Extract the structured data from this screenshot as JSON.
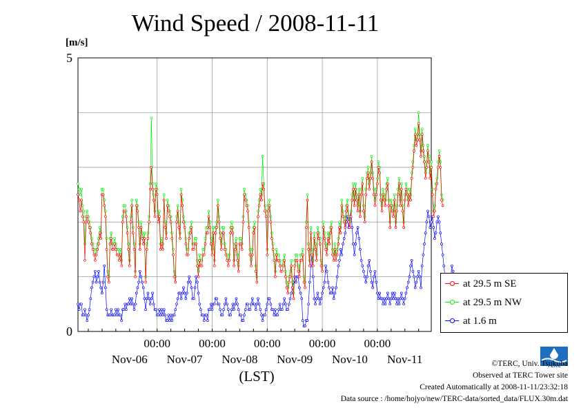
{
  "title": "Wind Speed / 2008-11-11",
  "unit": "[m/s]",
  "xlabel": "(LST)",
  "legend": [
    "at 29.5 m SE",
    "at 29.5 m NW",
    "at 1.6 m"
  ],
  "credits": {
    "copyright": "©TERC, Univ. Tsukuba",
    "observed": "Observed at TERC Tower site",
    "created": "Created Automatically at 2008-11-11/23:32:18",
    "source": "Data source : /home/hojyo/new/TERC-data/sorted_data/FLUX.30m.dat"
  },
  "logo_text": "TERC",
  "chart_data": {
    "type": "line",
    "title": "Wind Speed / 2008-11-11",
    "ylabel": "[m/s]",
    "xlabel": "(LST)",
    "ylim": [
      0,
      5
    ],
    "yticks": [
      "0",
      "5"
    ],
    "grid": true,
    "legend_position": "right-bottom",
    "time_ticks": [
      "00:00",
      "00:00",
      "00:00",
      "00:00",
      "00:00"
    ],
    "day_labels": [
      "Nov-06",
      "Nov-07",
      "Nov-08",
      "Nov-09",
      "Nov-10",
      "Nov-11"
    ],
    "x_start": "2008-11-05T13:30",
    "x_step_hours": 0.5,
    "colors": {
      "se": "#ff0000",
      "nw": "#00ee00",
      "low": "#0000ff"
    },
    "series": [
      {
        "name": "at 29.5 m SE",
        "color": "#ff0000",
        "values": [
          2.5,
          2.4,
          2.2,
          2.4,
          2.1,
          2.0,
          1.3,
          2.0,
          2.1,
          2.0,
          1.9,
          1.8,
          1.6,
          1.5,
          1.4,
          1.3,
          1.4,
          1.5,
          1.6,
          1.8,
          1.7,
          2.5,
          2.5,
          2.3,
          2.1,
          1.5,
          1.0,
          0.9,
          1.6,
          1.7,
          1.5,
          1.5,
          1.6,
          1.5,
          1.4,
          1.4,
          1.3,
          1.4,
          1.2,
          2.0,
          2.2,
          2.2,
          2.1,
          1.8,
          1.5,
          1.2,
          2.0,
          2.3,
          1.8,
          1.5,
          1.0,
          2.3,
          2.2,
          1.9,
          1.5,
          1.9,
          1.7,
          1.6,
          1.7,
          0.9,
          1.5,
          1.7,
          2.0,
          2.6,
          3.0,
          2.6,
          2.4,
          2.1,
          2.6,
          2.5,
          2.0,
          2.1,
          1.5,
          1.6,
          1.5,
          2.4,
          1.9,
          1.7,
          2.3,
          2.2,
          2.1,
          2.0,
          1.7,
          1.4,
          1.0,
          0.9,
          2.0,
          2.2,
          1.9,
          1.7,
          2.5,
          2.3,
          2.0,
          1.9,
          1.6,
          1.4,
          1.4,
          1.7,
          1.8,
          1.9,
          1.5,
          1.5,
          1.6,
          1.6,
          1.2,
          1.0,
          1.3,
          1.2,
          1.2,
          1.4,
          1.4,
          1.6,
          1.8,
          1.8,
          2.1,
          1.9,
          1.6,
          1.4,
          1.8,
          1.2,
          1.8,
          1.9,
          2.3,
          2.0,
          1.7,
          1.5,
          1.8,
          1.8,
          1.5,
          1.4,
          1.3,
          1.2,
          1.3,
          1.8,
          1.9,
          1.8,
          1.2,
          1.5,
          1.6,
          1.3,
          1.1,
          1.6,
          1.6,
          1.5,
          2.0,
          2.5,
          2.4,
          2.3,
          2.2,
          1.9,
          1.4,
          1.2,
          1.4,
          1.8,
          1.9,
          1.1,
          0.9,
          2.1,
          2.3,
          2.5,
          2.4,
          2.7,
          2.6,
          2.2,
          2.1,
          1.4,
          2.2,
          2.3,
          2.0,
          1.7,
          1.5,
          1.3,
          1.0,
          1.4,
          1.3,
          1.3,
          1.2,
          1.1,
          1.1,
          1.2,
          1.3,
          1.0,
          0.8,
          0.7,
          0.9,
          1.0,
          1.2,
          0.8,
          0.6,
          1.2,
          1.3,
          1.3,
          1.1,
          1.0,
          1.3,
          1.3,
          1.4,
          0.9,
          0.8,
          1.9,
          2.4,
          1.5,
          1.2,
          1.8,
          1.4,
          1.2,
          1.7,
          1.5,
          1.3,
          1.8,
          1.7,
          1.6,
          1.2,
          1.1,
          1.9,
          1.7,
          1.5,
          1.4,
          1.7,
          1.6,
          1.8,
          1.9,
          1.4,
          1.3,
          1.5,
          1.3,
          1.4,
          1.6,
          1.9,
          1.8,
          2.3,
          2.1,
          2.0,
          1.9,
          2.2,
          2.3,
          2.0,
          1.9,
          2.1,
          2.4,
          2.6,
          2.3,
          2.6,
          2.4,
          2.2,
          2.5,
          2.1,
          2.5,
          2.7,
          2.2,
          2.0,
          2.5,
          2.8,
          2.9,
          2.6,
          2.8,
          3.1,
          2.8,
          2.5,
          2.3,
          2.5,
          2.7,
          3.0,
          2.9,
          2.4,
          2.2,
          2.5,
          2.4,
          2.3,
          2.6,
          2.7,
          2.3,
          1.9,
          2.3,
          2.2,
          2.1,
          2.4,
          1.9,
          2.2,
          2.5,
          2.7,
          2.3,
          2.6,
          2.2,
          1.9,
          2.4,
          2.6,
          2.5,
          2.3,
          2.5,
          2.4,
          2.8,
          3.0,
          3.3,
          3.6,
          3.4,
          3.5,
          3.8,
          3.5,
          3.2,
          3.6,
          3.3,
          3.1,
          2.8,
          3.0,
          3.3,
          3.1,
          2.8,
          3.0,
          2.5,
          2.1,
          2.2,
          2.6,
          2.7,
          3.0,
          3.2,
          3.0,
          2.4,
          2.3
        ]
      },
      {
        "name": "at 29.5 m NW",
        "color": "#00ee00",
        "values": [
          2.7,
          2.6,
          2.5,
          2.6,
          2.3,
          2.2,
          1.6,
          2.1,
          2.2,
          2.1,
          2.0,
          1.9,
          1.7,
          1.6,
          1.5,
          1.4,
          1.5,
          1.6,
          1.7,
          1.9,
          1.8,
          2.6,
          2.6,
          2.4,
          2.2,
          1.7,
          1.1,
          1.0,
          1.7,
          1.8,
          1.6,
          1.6,
          1.7,
          1.6,
          1.5,
          1.5,
          1.4,
          1.5,
          1.3,
          2.1,
          2.3,
          2.3,
          2.2,
          1.9,
          1.6,
          1.3,
          2.1,
          2.4,
          1.9,
          1.6,
          1.1,
          2.4,
          2.3,
          2.0,
          1.6,
          2.0,
          1.8,
          1.7,
          1.8,
          1.0,
          1.6,
          1.8,
          2.1,
          2.7,
          3.9,
          2.7,
          2.5,
          2.2,
          2.7,
          2.6,
          2.1,
          2.2,
          1.6,
          1.7,
          1.6,
          2.5,
          2.0,
          1.8,
          2.4,
          2.3,
          2.2,
          2.1,
          1.8,
          1.5,
          1.1,
          1.0,
          2.1,
          2.3,
          2.0,
          1.8,
          2.6,
          2.4,
          2.1,
          2.0,
          1.7,
          1.5,
          1.5,
          1.8,
          1.9,
          2.0,
          1.6,
          1.6,
          1.7,
          1.7,
          1.3,
          1.1,
          1.4,
          1.3,
          1.3,
          1.5,
          1.5,
          1.7,
          1.9,
          1.9,
          2.2,
          2.0,
          1.7,
          1.5,
          1.9,
          1.3,
          1.9,
          2.0,
          2.4,
          2.1,
          1.8,
          1.6,
          1.9,
          1.9,
          1.6,
          1.5,
          1.4,
          1.3,
          1.4,
          1.9,
          2.0,
          1.9,
          1.3,
          1.6,
          1.7,
          1.4,
          1.2,
          1.7,
          1.7,
          1.6,
          2.1,
          2.6,
          2.5,
          2.4,
          2.3,
          2.0,
          1.5,
          1.3,
          1.5,
          1.9,
          2.0,
          1.2,
          1.0,
          2.2,
          2.4,
          2.6,
          2.5,
          3.2,
          2.7,
          2.3,
          2.2,
          1.5,
          2.3,
          2.4,
          2.1,
          1.8,
          1.6,
          1.4,
          1.1,
          1.5,
          1.4,
          1.4,
          1.3,
          1.2,
          1.2,
          1.3,
          1.4,
          1.1,
          0.9,
          0.8,
          1.0,
          1.1,
          1.3,
          0.9,
          0.7,
          1.3,
          1.4,
          1.4,
          1.2,
          1.1,
          1.4,
          1.4,
          1.5,
          1.0,
          0.9,
          2.0,
          2.5,
          1.6,
          1.3,
          1.9,
          1.5,
          1.3,
          1.8,
          1.6,
          1.4,
          1.9,
          1.8,
          1.7,
          1.3,
          1.2,
          2.0,
          1.8,
          1.6,
          1.5,
          1.8,
          1.7,
          1.9,
          2.0,
          1.5,
          1.4,
          1.6,
          1.4,
          1.5,
          1.7,
          2.0,
          1.9,
          2.4,
          2.2,
          2.1,
          2.0,
          2.3,
          2.4,
          2.1,
          2.0,
          2.2,
          2.5,
          2.7,
          2.4,
          2.7,
          2.5,
          2.3,
          2.6,
          2.2,
          2.6,
          2.8,
          2.3,
          2.1,
          2.6,
          2.9,
          3.0,
          2.7,
          2.9,
          3.2,
          2.9,
          2.6,
          2.4,
          2.6,
          2.8,
          3.1,
          3.0,
          2.5,
          2.3,
          2.6,
          2.5,
          2.4,
          2.7,
          2.8,
          2.4,
          2.0,
          2.4,
          2.3,
          2.2,
          2.5,
          2.0,
          2.3,
          2.6,
          2.8,
          2.4,
          2.7,
          2.3,
          2.0,
          2.5,
          2.7,
          2.6,
          2.4,
          2.6,
          2.5,
          2.9,
          3.1,
          3.4,
          3.7,
          3.5,
          3.6,
          4.0,
          3.6,
          3.3,
          3.7,
          3.4,
          3.2,
          2.9,
          3.1,
          3.4,
          3.2,
          2.9,
          3.1,
          2.6,
          2.2,
          2.3,
          2.7,
          2.8,
          3.1,
          3.3,
          3.1,
          2.5,
          2.4
        ]
      },
      {
        "name": "at 1.6 m",
        "color": "#0000ff",
        "values": [
          0.5,
          0.4,
          0.5,
          0.5,
          0.3,
          0.3,
          0.4,
          0.3,
          0.2,
          0.3,
          0.4,
          0.6,
          0.8,
          0.9,
          1.0,
          1.1,
          0.9,
          1.0,
          1.1,
          0.9,
          0.8,
          0.7,
          0.9,
          1.2,
          0.8,
          0.4,
          0.3,
          0.3,
          0.3,
          0.4,
          0.3,
          0.3,
          0.3,
          0.4,
          0.3,
          0.4,
          0.3,
          0.3,
          0.2,
          0.4,
          0.4,
          0.5,
          0.4,
          0.5,
          0.5,
          0.6,
          0.5,
          0.6,
          0.5,
          0.4,
          0.5,
          0.7,
          0.8,
          0.9,
          1.1,
          1.0,
          0.9,
          0.8,
          0.6,
          0.4,
          0.6,
          0.7,
          0.6,
          0.5,
          0.6,
          0.7,
          0.5,
          0.4,
          0.4,
          0.3,
          0.3,
          0.4,
          0.3,
          0.4,
          0.3,
          0.4,
          0.3,
          0.2,
          0.2,
          0.3,
          0.2,
          0.3,
          0.2,
          0.3,
          0.3,
          0.4,
          0.5,
          0.6,
          0.7,
          0.7,
          0.6,
          0.7,
          0.8,
          0.7,
          0.6,
          0.7,
          0.9,
          1.0,
          0.9,
          0.8,
          0.6,
          0.6,
          0.8,
          1.0,
          0.9,
          0.7,
          0.5,
          0.4,
          0.3,
          0.3,
          0.2,
          0.3,
          0.3,
          0.2,
          0.4,
          0.4,
          0.5,
          0.4,
          0.5,
          0.5,
          0.6,
          0.6,
          0.5,
          0.5,
          0.4,
          0.3,
          0.3,
          0.4,
          0.5,
          0.6,
          0.5,
          0.4,
          0.3,
          0.3,
          0.4,
          0.5,
          0.4,
          0.5,
          0.6,
          0.5,
          0.4,
          0.3,
          0.3,
          0.2,
          0.2,
          0.3,
          0.4,
          0.5,
          0.5,
          0.4,
          0.4,
          0.5,
          0.6,
          0.5,
          0.5,
          0.4,
          0.5,
          0.6,
          0.5,
          0.4,
          0.3,
          0.2,
          0.3,
          0.3,
          0.4,
          0.5,
          0.6,
          0.6,
          0.5,
          0.4,
          0.4,
          0.3,
          0.4,
          0.3,
          0.3,
          0.4,
          0.5,
          0.4,
          0.4,
          0.5,
          0.6,
          0.5,
          0.4,
          0.4,
          0.5,
          0.6,
          0.7,
          0.8,
          0.9,
          1.0,
          0.9,
          1.0,
          1.0,
          0.8,
          0.7,
          0.6,
          0.2,
          0.1,
          0.1,
          0.2,
          0.2,
          0.5,
          0.9,
          1.2,
          1.4,
          1.0,
          0.6,
          0.5,
          0.6,
          0.7,
          0.6,
          0.5,
          0.6,
          0.7,
          0.8,
          0.9,
          1.2,
          1.1,
          0.9,
          0.8,
          0.7,
          0.7,
          0.8,
          0.6,
          0.7,
          0.8,
          1.0,
          1.2,
          1.3,
          1.5,
          1.4,
          1.6,
          1.7,
          1.8,
          2.0,
          2.1,
          1.9,
          2.1,
          2.2,
          1.9,
          1.6,
          1.4,
          1.6,
          1.8,
          1.9,
          1.7,
          1.5,
          1.3,
          1.2,
          1.1,
          1.0,
          0.9,
          1.0,
          1.2,
          1.3,
          1.1,
          0.9,
          0.8,
          1.0,
          1.1,
          0.9,
          0.7,
          0.6,
          0.7,
          0.6,
          0.6,
          0.5,
          0.6,
          0.5,
          0.6,
          0.7,
          0.6,
          0.5,
          0.6,
          0.7,
          0.6,
          0.7,
          0.6,
          0.5,
          0.6,
          0.5,
          0.6,
          0.7,
          0.6,
          0.5,
          0.6,
          0.7,
          0.8,
          0.9,
          1.0,
          1.2,
          1.3,
          1.1,
          1.0,
          0.8,
          0.9,
          1.0,
          1.1,
          1.0,
          0.8,
          1.2,
          1.4,
          1.6,
          1.8,
          2.0,
          2.2,
          2.1,
          1.9,
          2.0,
          2.1,
          1.9,
          1.7,
          1.8,
          2.0,
          2.1,
          2.0,
          1.8,
          1.6,
          1.4,
          1.2,
          1.0,
          0.8,
          0.7,
          0.6,
          0.8,
          1.0,
          1.2,
          1.1,
          0.9,
          0.7,
          0.6,
          0.7
        ]
      }
    ]
  }
}
